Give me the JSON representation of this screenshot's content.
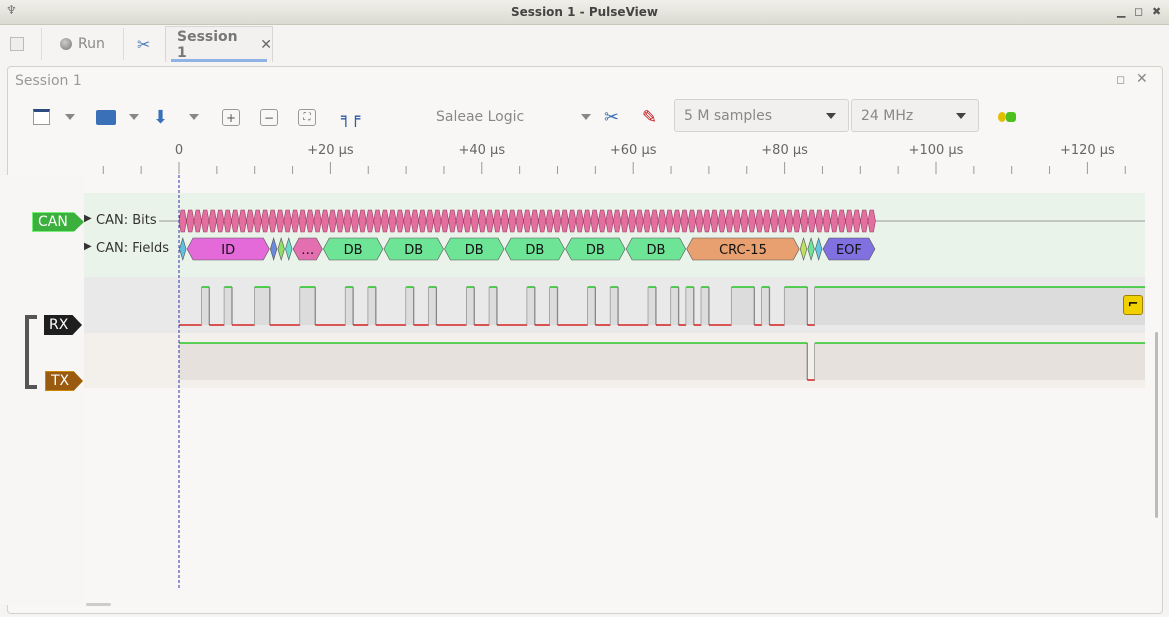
{
  "window": {
    "title": "Session 1 - PulseView",
    "minimize_icon": "minimize-icon",
    "maximize_icon": "maximize-icon",
    "close_icon": "close-icon"
  },
  "tabbar": {
    "run_label": "Run",
    "session_tab": "Session 1"
  },
  "panel": {
    "title": "Session 1"
  },
  "toolbar": {
    "device": "Saleae Logic",
    "samples": "5 M samples",
    "samplerate": "24 MHz"
  },
  "ruler": {
    "unit": "µs",
    "labels": [
      "0",
      "+20 µs",
      "+40 µs",
      "+60 µs",
      "+80 µs",
      "+100 µs",
      "+120 µs"
    ],
    "major_step": 20,
    "minor_step": 5
  },
  "decoder": {
    "name": "CAN",
    "color": "#3cb03c",
    "rows": [
      "CAN: Bits",
      "CAN: Fields"
    ],
    "bits_range_us": [
      0,
      92
    ],
    "bit_color": "#e36fa0",
    "fields": [
      {
        "label": "",
        "start": 0,
        "end": 1,
        "color": "#60c0e0"
      },
      {
        "label": "ID",
        "start": 1,
        "end": 12,
        "color": "#e36ad8"
      },
      {
        "label": "",
        "start": 12,
        "end": 13,
        "color": "#6a8ae0"
      },
      {
        "label": "",
        "start": 13,
        "end": 14,
        "color": "#90de6a"
      },
      {
        "label": "",
        "start": 14,
        "end": 15,
        "color": "#6adcc8"
      },
      {
        "label": "…",
        "start": 15,
        "end": 19,
        "color": "#e36fb0"
      },
      {
        "label": "DB",
        "start": 19,
        "end": 27,
        "color": "#6ee497"
      },
      {
        "label": "DB",
        "start": 27,
        "end": 35,
        "color": "#6ee497"
      },
      {
        "label": "DB",
        "start": 35,
        "end": 43,
        "color": "#6ee497"
      },
      {
        "label": "DB",
        "start": 43,
        "end": 51,
        "color": "#6ee497"
      },
      {
        "label": "DB",
        "start": 51,
        "end": 59,
        "color": "#6ee497"
      },
      {
        "label": "DB",
        "start": 59,
        "end": 67,
        "color": "#6ee497"
      },
      {
        "label": "CRC-15",
        "start": 67,
        "end": 82,
        "color": "#e8a070"
      },
      {
        "label": "",
        "start": 82,
        "end": 83,
        "color": "#c0e060"
      },
      {
        "label": "",
        "start": 83,
        "end": 84,
        "color": "#6ee497"
      },
      {
        "label": "",
        "start": 84,
        "end": 85,
        "color": "#60c8e0"
      },
      {
        "label": "EOF",
        "start": 85,
        "end": 92,
        "color": "#8070e0"
      }
    ]
  },
  "channels": [
    {
      "name": "RX",
      "tag_color": "#1e1e1e",
      "initial": 0,
      "edges_us": [
        3,
        4,
        6,
        7,
        10,
        12,
        16,
        18,
        22,
        23,
        25,
        26,
        30,
        31,
        33,
        34,
        38,
        39,
        41,
        42,
        46,
        47,
        49,
        50,
        54,
        55,
        57,
        58,
        62,
        63,
        65,
        66,
        67,
        68,
        69,
        70,
        73,
        76,
        77,
        78,
        80,
        83,
        84
      ],
      "trigger": "falling-edge-icon"
    },
    {
      "name": "TX",
      "tag_color": "#9a5a10",
      "initial": 1,
      "edges_us": [
        83,
        84
      ]
    }
  ],
  "colors": {
    "high": "#00c000",
    "low": "#d00000",
    "cursor": "#3030b0"
  }
}
